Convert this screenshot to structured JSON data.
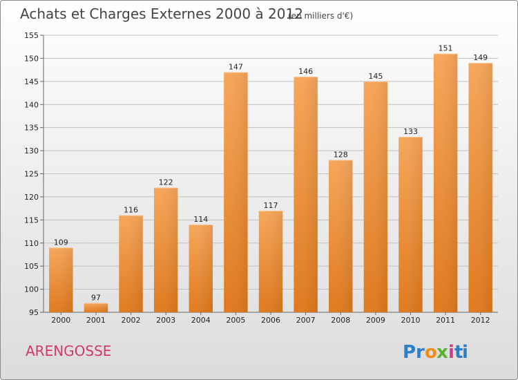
{
  "title": "Achats et Charges Externes 2000 à 2012",
  "subtitle": "(en milliers d'€)",
  "commune": "ARENGOSSE",
  "logo": {
    "text": "Proxiti",
    "letters": [
      "P",
      "r",
      "o",
      "x",
      "i",
      "t",
      "i"
    ],
    "colors": [
      "#2a7fc8",
      "#2a7fc8",
      "#f08c1a",
      "#5cb030",
      "#d23a8c",
      "#2a7fc8",
      "#2a7fc8"
    ]
  },
  "colors": {
    "bar_light": "#f7a65a",
    "bar_dark": "#e07a1e",
    "grid": "#bfbfbf",
    "commune": "#d2386f"
  },
  "chart_data": {
    "type": "bar",
    "categories": [
      "2000",
      "2001",
      "2002",
      "2003",
      "2004",
      "2005",
      "2006",
      "2007",
      "2008",
      "2009",
      "2010",
      "2011",
      "2012"
    ],
    "values": [
      109,
      97,
      116,
      122,
      114,
      147,
      117,
      146,
      128,
      145,
      133,
      151,
      149
    ],
    "ylim": [
      95,
      155
    ],
    "yticks": [
      95,
      100,
      105,
      110,
      115,
      120,
      125,
      130,
      135,
      140,
      145,
      150,
      155
    ],
    "grid": "horizontal"
  }
}
